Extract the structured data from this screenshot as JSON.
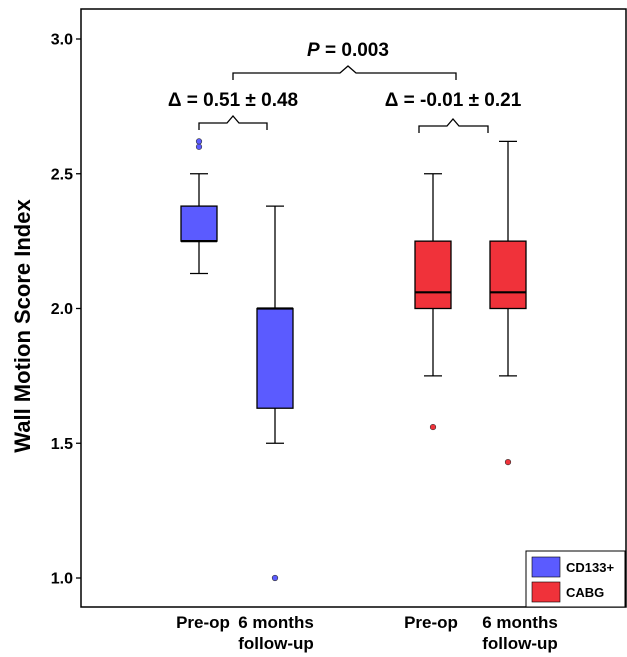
{
  "chart_data": {
    "type": "box",
    "ylabel": "Wall Motion Score Index",
    "ylim": [
      0.9,
      3.1
    ],
    "yticks": [
      "1.0",
      "1.5",
      "2.0",
      "2.5",
      "3.0"
    ],
    "ytick_values": [
      1.0,
      1.5,
      2.0,
      2.5,
      3.0
    ],
    "colors": {
      "CD133+": "#5b5bff",
      "CABG": "#f0323a"
    },
    "legend": {
      "position": "bottom-right",
      "entries": [
        "CD133+",
        "CABG"
      ]
    },
    "categories": [
      {
        "lines": [
          "Pre-op"
        ]
      },
      {
        "lines": [
          "6 months",
          "follow-up"
        ]
      },
      {
        "lines": [
          "Pre-op"
        ]
      },
      {
        "lines": [
          "6 months",
          "follow-up"
        ]
      }
    ],
    "boxes": [
      {
        "group": "CD133+",
        "category": "Pre-op",
        "whisker_low": 2.13,
        "q1": 2.25,
        "median": 2.25,
        "q3": 2.38,
        "whisker_high": 2.5,
        "outliers": [
          2.6,
          2.62
        ]
      },
      {
        "group": "CD133+",
        "category": "6 months follow-up",
        "whisker_low": 1.5,
        "q1": 1.63,
        "median": 2.0,
        "q3": 2.0,
        "whisker_high": 2.38,
        "outliers": [
          1.0
        ]
      },
      {
        "group": "CABG",
        "category": "Pre-op",
        "whisker_low": 1.75,
        "q1": 2.0,
        "median": 2.06,
        "q3": 2.25,
        "whisker_high": 2.5,
        "outliers": [
          1.56
        ]
      },
      {
        "group": "CABG",
        "category": "6 months follow-up",
        "whisker_low": 1.75,
        "q1": 2.0,
        "median": 2.06,
        "q3": 2.25,
        "whisker_high": 2.62,
        "outliers": [
          1.43
        ]
      }
    ],
    "annotations": {
      "overall_p_italic": "P",
      "overall_p_rest": " = 0.003",
      "delta_cd133": "Δ = 0.51 ± 0.48",
      "delta_cabg": "Δ = -0.01 ± 0.21"
    }
  }
}
